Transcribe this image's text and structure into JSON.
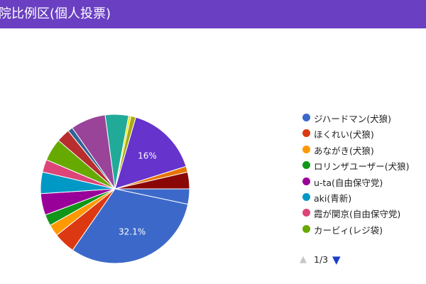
{
  "header": {
    "title": "院比例区(個人投票)"
  },
  "chart_data": {
    "type": "pie",
    "title": "院比例区(個人投票)",
    "legend_position": "right",
    "slices": [
      {
        "name": "",
        "percent": 3.4,
        "color": "#3c69c9"
      },
      {
        "name": "ジハードマン(犬狼)",
        "percent": 32.1,
        "color": "#3c69c9",
        "label": "32.1%"
      },
      {
        "name": "ほくれい(犬狼)",
        "percent": 4.8,
        "color": "#dc3912"
      },
      {
        "name": "あながき(犬狼)",
        "percent": 2.6,
        "color": "#ff9900"
      },
      {
        "name": "ロリンザユーザー(犬狼)",
        "percent": 2.5,
        "color": "#109618"
      },
      {
        "name": "u-ta(自由保守党)",
        "percent": 4.8,
        "color": "#990099"
      },
      {
        "name": "aki(青新)",
        "percent": 4.8,
        "color": "#0099c6"
      },
      {
        "name": "霞が関京(自由保守党)",
        "percent": 2.8,
        "color": "#dd4477"
      },
      {
        "name": "カービィ(レジ袋)",
        "percent": 5.0,
        "color": "#66aa00"
      },
      {
        "name": "",
        "percent": 3.0,
        "color": "#b82e2e"
      },
      {
        "name": "",
        "percent": 1.1,
        "color": "#316395"
      },
      {
        "name": "",
        "percent": 7.8,
        "color": "#994499"
      },
      {
        "name": "",
        "percent": 5.2,
        "color": "#22aa99"
      },
      {
        "name": "",
        "percent": 0.5,
        "color": "#e5e500"
      },
      {
        "name": "",
        "percent": 1.1,
        "color": "#aaaa11"
      },
      {
        "name": "",
        "percent": 16.0,
        "color": "#6633cc",
        "label": "16%"
      },
      {
        "name": "",
        "percent": 1.3,
        "color": "#e67300"
      },
      {
        "name": "",
        "percent": 3.7,
        "color": "#8b0707"
      }
    ]
  },
  "legend": {
    "items": [
      {
        "label": "ジハードマン(犬狼)",
        "color": "#3c69c9"
      },
      {
        "label": "ほくれい(犬狼)",
        "color": "#dc3912"
      },
      {
        "label": "あながき(犬狼)",
        "color": "#ff9900"
      },
      {
        "label": "ロリンザユーザー(犬狼)",
        "color": "#109618"
      },
      {
        "label": "u-ta(自由保守党)",
        "color": "#990099"
      },
      {
        "label": "aki(青新)",
        "color": "#0099c6"
      },
      {
        "label": "霞が関京(自由保守党)",
        "color": "#dd4477"
      },
      {
        "label": "カービィ(レジ袋)",
        "color": "#66aa00"
      }
    ]
  },
  "pager": {
    "text": "1/3",
    "prev_icon": "triangle-up-icon",
    "next_icon": "triangle-down-icon"
  }
}
